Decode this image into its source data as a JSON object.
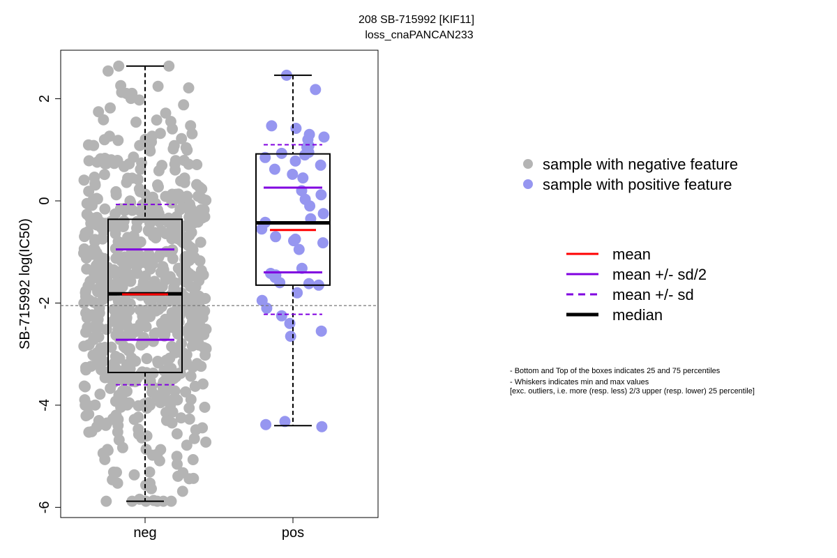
{
  "chart_data": {
    "type": "box",
    "title_line1": "208 SB-715992 [KIF11]",
    "title_line2": "loss_cnaPANCAN233",
    "ylabel": "SB-715992 log(IC50)",
    "xlabel": "",
    "categories": [
      "neg",
      "pos"
    ],
    "ylim": [
      -6.2,
      2.95
    ],
    "yticks": [
      -6,
      -4,
      -2,
      0,
      2
    ],
    "reference_line_y": -2.05,
    "grid": false,
    "legend_position": "right",
    "groups": [
      {
        "name": "neg",
        "point_color": "#b4b4b4",
        "n_points_approx": 700,
        "whisker_min": -5.88,
        "q1": -3.36,
        "median": -1.82,
        "q3": -0.36,
        "whisker_max": 2.64,
        "mean": -1.83,
        "mean_minus_half_sd": -2.72,
        "mean_plus_half_sd": -0.95,
        "mean_minus_sd": -3.6,
        "mean_plus_sd": -0.07
      },
      {
        "name": "pos",
        "point_color": "#9696f0",
        "points": [
          2.46,
          2.18,
          1.47,
          1.42,
          1.3,
          1.25,
          1.2,
          1.08,
          1.05,
          0.95,
          0.93,
          0.9,
          0.85,
          0.78,
          0.7,
          0.62,
          0.52,
          0.45,
          0.2,
          0.12,
          0.03,
          -0.1,
          -0.25,
          -0.35,
          -0.42,
          -0.55,
          -0.7,
          -0.75,
          -0.78,
          -0.82,
          -0.95,
          -1.32,
          -1.42,
          -1.45,
          -1.5,
          -1.6,
          -1.62,
          -1.65,
          -1.8,
          -1.95,
          -2.1,
          -2.25,
          -2.4,
          -2.55,
          -2.65,
          -4.32,
          -4.38,
          -4.42
        ],
        "whisker_min": -4.4,
        "q1": -1.65,
        "median": -0.43,
        "q3": 0.92,
        "whisker_max": 2.46,
        "mean": -0.57,
        "mean_minus_half_sd": -1.4,
        "mean_plus_half_sd": 0.26,
        "mean_minus_sd": -2.22,
        "mean_plus_sd": 1.1
      }
    ],
    "legend_points": [
      {
        "label": "sample with negative feature",
        "color": "#b4b4b4"
      },
      {
        "label": "sample with positive feature",
        "color": "#9696f0"
      }
    ],
    "legend_lines": [
      {
        "label": "mean",
        "color": "#ff0000",
        "style": "solid"
      },
      {
        "label": "mean +/- sd/2",
        "color": "#8000e0",
        "style": "solid"
      },
      {
        "label": "mean +/- sd",
        "color": "#8000e0",
        "style": "dashed"
      },
      {
        "label": "median",
        "color": "#000000",
        "style": "bold"
      }
    ],
    "notes": [
      "- Bottom and Top of the boxes indicates 25 and 75 percentiles",
      "- Whiskers indicates min and max values",
      "[exc. outliers, i.e. more (resp. less) 2/3 upper (resp. lower) 25 percentile]"
    ]
  }
}
